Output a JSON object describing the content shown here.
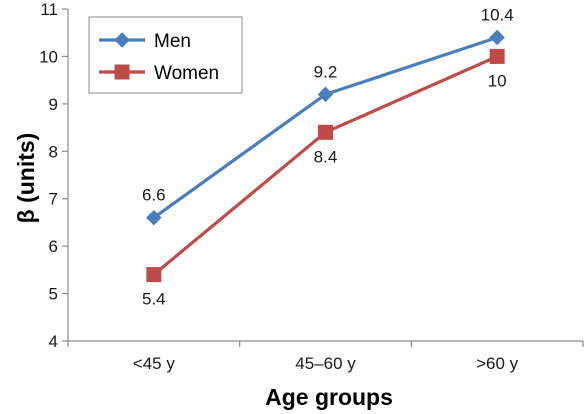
{
  "chart_data": {
    "type": "line",
    "categories": [
      "<45 y",
      "45–60 y",
      ">60 y"
    ],
    "series": [
      {
        "name": "Men",
        "values": [
          6.6,
          9.2,
          10.4
        ],
        "color": "#4a7ebb",
        "marker": "diamond",
        "labels": [
          "6.6",
          "9.2",
          "10.4"
        ],
        "label_position": "above"
      },
      {
        "name": "Women",
        "values": [
          5.4,
          8.4,
          10
        ],
        "color": "#be4b48",
        "marker": "square",
        "labels": [
          "5.4",
          "8.4",
          "10"
        ],
        "label_position": "below"
      }
    ],
    "xlabel": "Age groups",
    "ylabel": "β (units)",
    "ylim": [
      4,
      11
    ],
    "yticks": [
      "4",
      "5",
      "6",
      "7",
      "8",
      "9",
      "10",
      "11"
    ],
    "grid": false,
    "legend": "top-left"
  }
}
